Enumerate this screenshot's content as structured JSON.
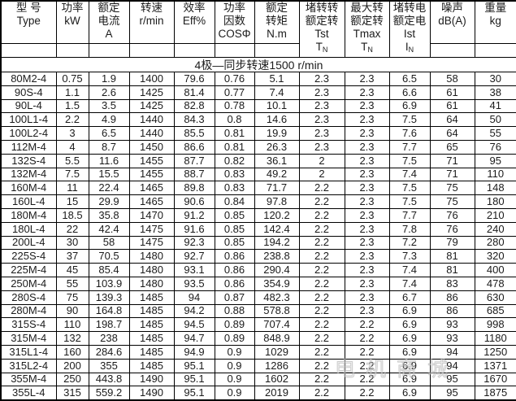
{
  "table": {
    "columns": [
      {
        "key": "type",
        "tall": false,
        "lines": [
          "型 号",
          "Type"
        ]
      },
      {
        "key": "power-kw",
        "tall": false,
        "lines": [
          "功率",
          "kW"
        ]
      },
      {
        "key": "rated-current",
        "tall": false,
        "lines": [
          "额定",
          "电流",
          "A"
        ]
      },
      {
        "key": "speed-rpm",
        "tall": false,
        "lines": [
          "转速",
          "r/min"
        ]
      },
      {
        "key": "efficiency",
        "tall": false,
        "lines": [
          "效率",
          "Eff%"
        ]
      },
      {
        "key": "power-factor",
        "tall": false,
        "lines": [
          "功率",
          "因数",
          "COSΦ"
        ]
      },
      {
        "key": "rated-torque",
        "tall": false,
        "lines": [
          "额定",
          "转矩",
          "N.m"
        ]
      },
      {
        "key": "tst-tn",
        "tall": true,
        "lines": [
          "堵转转",
          "额定转",
          "Tst",
          "T{N}"
        ]
      },
      {
        "key": "tmax-tn",
        "tall": true,
        "lines": [
          "最大转",
          "额定转",
          "Tmax",
          "T{N}"
        ]
      },
      {
        "key": "ist-in",
        "tall": true,
        "lines": [
          "堵转电",
          "额定电",
          "Ist",
          "I{N}"
        ]
      },
      {
        "key": "noise-db",
        "tall": false,
        "lines": [
          "噪声",
          "dB(A)"
        ]
      },
      {
        "key": "weight-kg",
        "tall": false,
        "lines": [
          "重量",
          "kg"
        ]
      }
    ],
    "subheader": "4极—同步转速1500 r/min",
    "rows": [
      [
        "80M2-4",
        "0.75",
        "1.9",
        "1400",
        "79.6",
        "0.76",
        "5.1",
        "2.3",
        "2.3",
        "6.5",
        "58",
        "30"
      ],
      [
        "90S-4",
        "1.1",
        "2.6",
        "1425",
        "81.4",
        "0.77",
        "7.4",
        "2.3",
        "2.3",
        "6.6",
        "61",
        "38"
      ],
      [
        "90L-4",
        "1.5",
        "3.5",
        "1425",
        "82.8",
        "0.78",
        "10.1",
        "2.3",
        "2.3",
        "6.9",
        "61",
        "41"
      ],
      [
        "100L1-4",
        "2.2",
        "4.9",
        "1440",
        "84.3",
        "0.8",
        "14.6",
        "2.3",
        "2.3",
        "7.5",
        "64",
        "50"
      ],
      [
        "100L2-4",
        "3",
        "6.5",
        "1440",
        "85.5",
        "0.81",
        "19.9",
        "2.3",
        "2.3",
        "7.6",
        "64",
        "55"
      ],
      [
        "112M-4",
        "4",
        "8.7",
        "1450",
        "86.6",
        "0.81",
        "26.3",
        "2.3",
        "2.3",
        "7.7",
        "65",
        "76"
      ],
      [
        "132S-4",
        "5.5",
        "11.6",
        "1455",
        "87.7",
        "0.82",
        "36.1",
        "2",
        "2.3",
        "7.5",
        "71",
        "95"
      ],
      [
        "132M-4",
        "7.5",
        "15.5",
        "1455",
        "88.7",
        "0.83",
        "49.2",
        "2",
        "2.3",
        "7.4",
        "71",
        "110"
      ],
      [
        "160M-4",
        "11",
        "22.4",
        "1465",
        "89.8",
        "0.83",
        "71.7",
        "2.2",
        "2.3",
        "7.5",
        "75",
        "148"
      ],
      [
        "160L-4",
        "15",
        "29.9",
        "1465",
        "90.6",
        "0.84",
        "97.8",
        "2.2",
        "2.3",
        "7.5",
        "75",
        "180"
      ],
      [
        "180M-4",
        "18.5",
        "35.8",
        "1470",
        "91.2",
        "0.85",
        "120.2",
        "2.2",
        "2.3",
        "7.7",
        "76",
        "210"
      ],
      [
        "180L-4",
        "22",
        "42.4",
        "1475",
        "91.6",
        "0.85",
        "142.4",
        "2.2",
        "2.3",
        "7.8",
        "76",
        "240"
      ],
      [
        "200L-4",
        "30",
        "58",
        "1475",
        "92.3",
        "0.85",
        "194.2",
        "2.2",
        "2.3",
        "7.2",
        "79",
        "280"
      ],
      [
        "225S-4",
        "37",
        "70.5",
        "1480",
        "92.7",
        "0.86",
        "238.8",
        "2.2",
        "2.3",
        "7.3",
        "81",
        "320"
      ],
      [
        "225M-4",
        "45",
        "85.4",
        "1480",
        "93.1",
        "0.86",
        "290.4",
        "2.2",
        "2.3",
        "7.4",
        "81",
        "400"
      ],
      [
        "250M-4",
        "55",
        "103.9",
        "1480",
        "93.5",
        "0.86",
        "354.9",
        "2.2",
        "2.3",
        "7.4",
        "83",
        "478"
      ],
      [
        "280S-4",
        "75",
        "139.3",
        "1485",
        "94",
        "0.87",
        "482.3",
        "2.2",
        "2.3",
        "6.7",
        "86",
        "630"
      ],
      [
        "280M-4",
        "90",
        "164.8",
        "1485",
        "94.2",
        "0.88",
        "578.8",
        "2.2",
        "2.3",
        "6.9",
        "86",
        "685"
      ],
      [
        "315S-4",
        "110",
        "198.7",
        "1485",
        "94.5",
        "0.89",
        "707.4",
        "2.2",
        "2.2",
        "6.9",
        "93",
        "998"
      ],
      [
        "315M-4",
        "132",
        "238",
        "1485",
        "94.7",
        "0.89",
        "848.9",
        "2.2",
        "2.2",
        "6.9",
        "93",
        "1180"
      ],
      [
        "315L1-4",
        "160",
        "284.6",
        "1485",
        "94.9",
        "0.9",
        "1029",
        "2.2",
        "2.2",
        "6.9",
        "94",
        "1250"
      ],
      [
        "315L2-4",
        "200",
        "355",
        "1485",
        "95.1",
        "0.9",
        "1286",
        "2.2",
        "2.2",
        "6.9",
        "94",
        "1371"
      ],
      [
        "355M-4",
        "250",
        "443.8",
        "1490",
        "95.1",
        "0.9",
        "1602",
        "2.2",
        "2.2",
        "6.9",
        "95",
        "1670"
      ],
      [
        "355L-4",
        "315",
        "559.2",
        "1490",
        "95.1",
        "0.9",
        "2019",
        "2.2",
        "2.2",
        "6.9",
        "95",
        "1875"
      ]
    ]
  },
  "watermark": "电机商城",
  "colors": {
    "border": "#000000",
    "text": "#1b1b1b",
    "background": "#ffffff"
  }
}
